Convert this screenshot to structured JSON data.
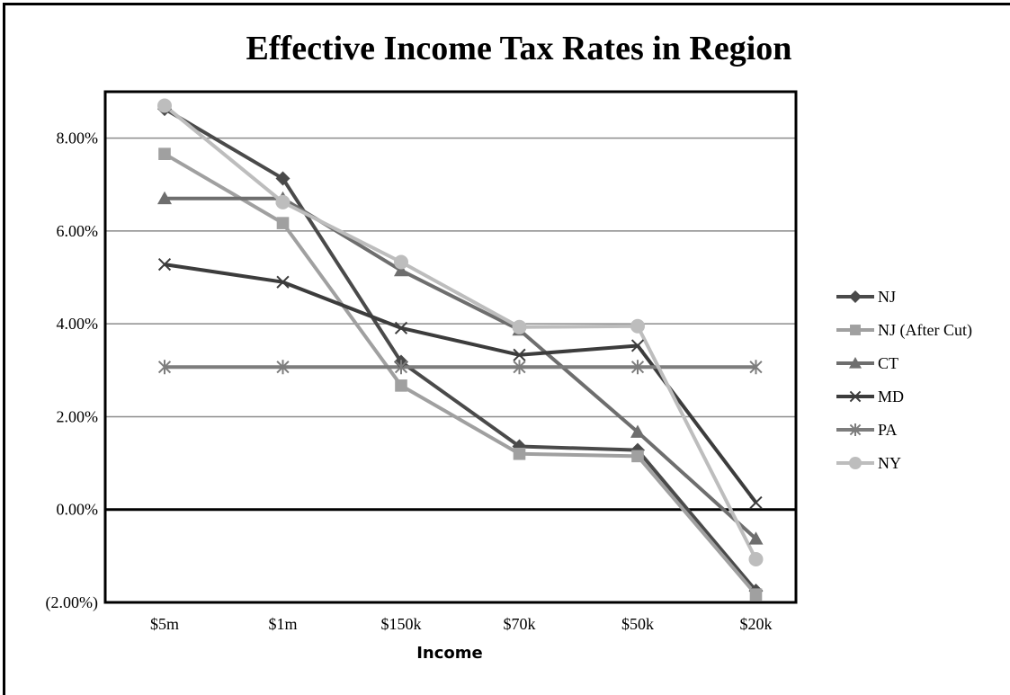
{
  "chart_data": {
    "type": "line",
    "title": "Effective Income Tax Rates in Region",
    "xlabel": "Income",
    "ylabel": "",
    "categories": [
      "$5m",
      "$1m",
      "$150k",
      "$70k",
      "$50k",
      "$20k"
    ],
    "ylim": [
      -0.02,
      0.09
    ],
    "y_ticks": [
      -0.02,
      0.0,
      0.02,
      0.04,
      0.06,
      0.08
    ],
    "y_tick_labels": [
      "(2.00%)",
      "0.00%",
      "2.00%",
      "4.00%",
      "6.00%",
      "8.00%"
    ],
    "grid": true,
    "legend_position": "right",
    "series": [
      {
        "name": "NJ",
        "values": [
          0.0863,
          0.0713,
          0.0318,
          0.0136,
          0.0128,
          -0.0175
        ],
        "color": "#4a4a4a",
        "marker": "diamond"
      },
      {
        "name": "NJ (After Cut)",
        "values": [
          0.0766,
          0.0617,
          0.0267,
          0.012,
          0.0115,
          -0.0183
        ],
        "color": "#a0a0a0",
        "marker": "square"
      },
      {
        "name": "CT",
        "values": [
          0.067,
          0.067,
          0.0515,
          0.0387,
          0.0167,
          -0.0063
        ],
        "color": "#6e6e6e",
        "marker": "triangle"
      },
      {
        "name": "MD",
        "values": [
          0.0528,
          0.049,
          0.0391,
          0.0333,
          0.0353,
          0.0015
        ],
        "color": "#3c3c3c",
        "marker": "x"
      },
      {
        "name": "PA",
        "values": [
          0.0307,
          0.0307,
          0.0307,
          0.0307,
          0.0307,
          0.0307
        ],
        "color": "#7d7d7d",
        "marker": "star"
      },
      {
        "name": "NY",
        "values": [
          0.087,
          0.0662,
          0.0533,
          0.0393,
          0.0395,
          -0.0107
        ],
        "color": "#bdbdbd",
        "marker": "circle"
      }
    ]
  }
}
